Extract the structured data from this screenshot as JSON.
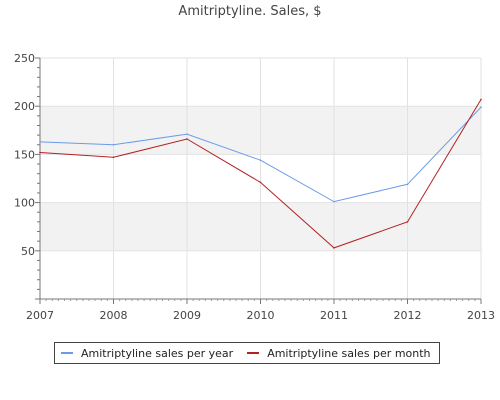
{
  "chart_data": {
    "type": "line",
    "title": "Amitriptyline. Sales, $",
    "xlabel": "",
    "ylabel": "",
    "x": [
      "2007",
      "2008",
      "2009",
      "2010",
      "2011",
      "2012",
      "2013"
    ],
    "ylim": [
      0,
      250
    ],
    "yticks": [
      50,
      100,
      150,
      200,
      250
    ],
    "grid": true,
    "alternating_bands": true,
    "legend_position": "bottom",
    "series": [
      {
        "name": "Amitriptyline sales per year",
        "color": "#6b9be8",
        "values": [
          163,
          160,
          171,
          144,
          101,
          119,
          199
        ]
      },
      {
        "name": "Amitriptyline sales per month",
        "color": "#b22222",
        "values": [
          152,
          147,
          166,
          121,
          53,
          80,
          207
        ]
      }
    ]
  }
}
